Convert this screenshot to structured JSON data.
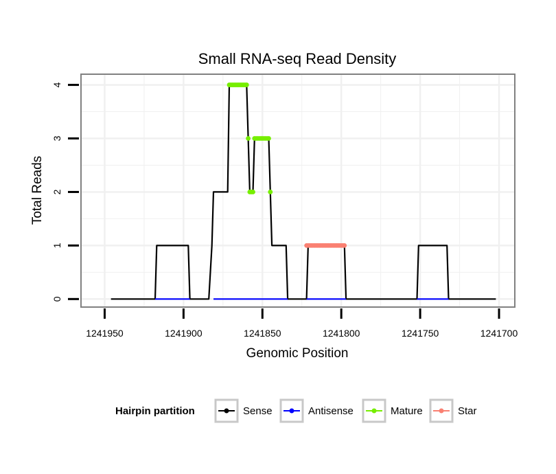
{
  "chart_data": {
    "type": "line",
    "title": "Small RNA-seq Read Density",
    "xlabel": "Genomic Position",
    "ylabel": "Total Reads",
    "xlim": [
      1241965,
      1241690
    ],
    "x_reversed": true,
    "ylim": [
      -0.15,
      4.2
    ],
    "xticks": [
      1241950,
      1241900,
      1241850,
      1241800,
      1241750,
      1241700
    ],
    "xtick_labels": [
      "1241950",
      "1241900",
      "1241850",
      "1241800",
      "1241750",
      "1241700"
    ],
    "yticks": [
      0,
      1,
      2,
      3,
      4
    ],
    "ytick_labels": [
      "0",
      "1",
      "2",
      "3",
      "4"
    ],
    "grid": true,
    "legend": {
      "title": "Hairpin partition",
      "position": "bottom",
      "entries": [
        "Sense",
        "Antisense",
        "Mature",
        "Star"
      ]
    },
    "colors": {
      "Sense": "#000000",
      "Antisense": "#0000ff",
      "Mature": "#76ee00",
      "Star": "#fa8072",
      "grid": "#f0f0f0",
      "frame": "#808080"
    },
    "series": [
      {
        "name": "Sense",
        "points": [
          [
            1241946,
            0
          ],
          [
            1241918,
            0
          ],
          [
            1241917,
            1
          ],
          [
            1241897,
            1
          ],
          [
            1241896,
            0
          ],
          [
            1241884,
            0
          ],
          [
            1241882,
            1
          ],
          [
            1241881,
            2
          ],
          [
            1241872,
            2
          ],
          [
            1241871,
            4
          ],
          [
            1241860,
            4
          ],
          [
            1241859,
            3
          ],
          [
            1241858,
            2
          ],
          [
            1241856,
            2
          ],
          [
            1241855,
            3
          ],
          [
            1241846,
            3
          ],
          [
            1241845,
            2
          ],
          [
            1241844,
            1
          ],
          [
            1241835,
            1
          ],
          [
            1241834,
            0
          ],
          [
            1241822,
            0
          ],
          [
            1241821,
            1
          ],
          [
            1241798,
            1
          ],
          [
            1241797,
            0
          ],
          [
            1241752,
            0
          ],
          [
            1241751,
            1
          ],
          [
            1241733,
            1
          ],
          [
            1241732,
            0
          ],
          [
            1241702,
            0
          ]
        ]
      },
      {
        "name": "Antisense",
        "points": [
          [
            1241918,
            0
          ],
          [
            1241896,
            0
          ],
          [
            1241881,
            0
          ],
          [
            1241834,
            0
          ],
          [
            1241822,
            0
          ],
          [
            1241797,
            0
          ],
          [
            1241752,
            0
          ],
          [
            1241732,
            0
          ]
        ]
      },
      {
        "name": "Mature",
        "points": [
          [
            1241871,
            4
          ],
          [
            1241870,
            4
          ],
          [
            1241869,
            4
          ],
          [
            1241868,
            4
          ],
          [
            1241867,
            4
          ],
          [
            1241866,
            4
          ],
          [
            1241865,
            4
          ],
          [
            1241864,
            4
          ],
          [
            1241863,
            4
          ],
          [
            1241862,
            4
          ],
          [
            1241861,
            4
          ],
          [
            1241860,
            4
          ],
          [
            1241859,
            3
          ],
          [
            1241858,
            2
          ],
          [
            1241857,
            2
          ],
          [
            1241856,
            2
          ],
          [
            1241855,
            3
          ],
          [
            1241854,
            3
          ],
          [
            1241853,
            3
          ],
          [
            1241852,
            3
          ],
          [
            1241851,
            3
          ],
          [
            1241850,
            3
          ],
          [
            1241849,
            3
          ],
          [
            1241848,
            3
          ],
          [
            1241847,
            3
          ],
          [
            1241846,
            3
          ],
          [
            1241845,
            2
          ]
        ]
      },
      {
        "name": "Star",
        "points": [
          [
            1241822,
            1
          ],
          [
            1241821,
            1
          ],
          [
            1241820,
            1
          ],
          [
            1241819,
            1
          ],
          [
            1241818,
            1
          ],
          [
            1241817,
            1
          ],
          [
            1241816,
            1
          ],
          [
            1241815,
            1
          ],
          [
            1241814,
            1
          ],
          [
            1241813,
            1
          ],
          [
            1241812,
            1
          ],
          [
            1241811,
            1
          ],
          [
            1241810,
            1
          ],
          [
            1241809,
            1
          ],
          [
            1241808,
            1
          ],
          [
            1241807,
            1
          ],
          [
            1241806,
            1
          ],
          [
            1241805,
            1
          ],
          [
            1241804,
            1
          ],
          [
            1241803,
            1
          ],
          [
            1241802,
            1
          ],
          [
            1241801,
            1
          ],
          [
            1241800,
            1
          ],
          [
            1241799,
            1
          ],
          [
            1241798,
            1
          ]
        ]
      }
    ]
  }
}
